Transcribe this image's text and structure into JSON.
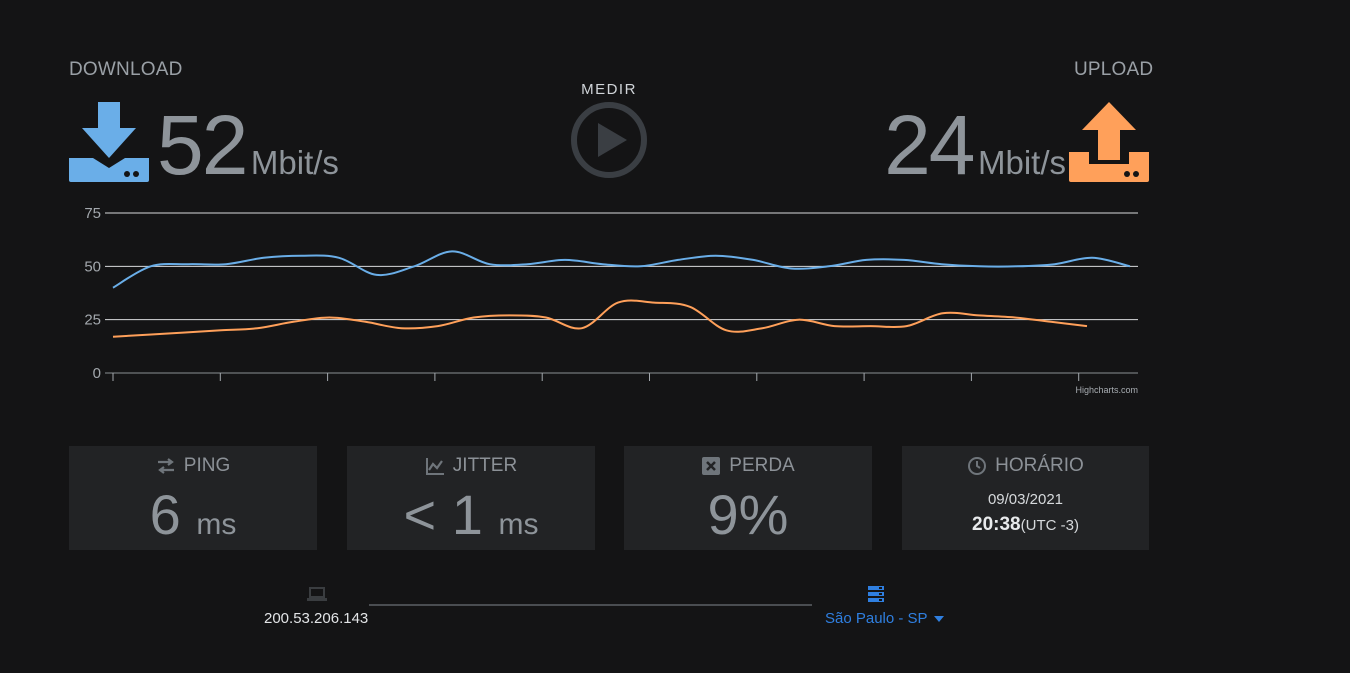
{
  "download": {
    "label": "DOWNLOAD",
    "value": "52",
    "unit": "Mbit/s",
    "color": "#6aaee8"
  },
  "upload": {
    "label": "UPLOAD",
    "value": "24",
    "unit": "Mbit/s",
    "color": "#ffa05a"
  },
  "measure": {
    "label": "MEDIR"
  },
  "chart_data": {
    "type": "line",
    "y_ticks": [
      "75",
      "50",
      "25",
      "0"
    ],
    "ylim": [
      0,
      75
    ],
    "credit": "Highcharts.com",
    "series": [
      {
        "color": "#6aaee8",
        "values": [
          40,
          50,
          51,
          51,
          54,
          55,
          54,
          46,
          50,
          57,
          51,
          51,
          53,
          51,
          50,
          53,
          55,
          53,
          49,
          50,
          53,
          53,
          51,
          50,
          50,
          51,
          54,
          50
        ]
      },
      {
        "color": "#ffa05a",
        "values": [
          17,
          18,
          19,
          20,
          21,
          24,
          26,
          24,
          21,
          22,
          26,
          27,
          26,
          21,
          33,
          33,
          31,
          20,
          21,
          25,
          22,
          22,
          22,
          28,
          27,
          26,
          24,
          22
        ]
      }
    ]
  },
  "ping": {
    "label": "PING",
    "value": "6",
    "unit": "ms"
  },
  "jitter": {
    "label": "JITTER",
    "prefix": "<",
    "value": "1",
    "unit": "ms"
  },
  "loss": {
    "label": "PERDA",
    "value": "9%"
  },
  "time": {
    "label": "HORÁRIO",
    "date": "09/03/2021",
    "clock": "20:38",
    "tz": "(UTC -3)"
  },
  "client": {
    "ip": "200.53.206.143"
  },
  "server": {
    "name": "São Paulo - SP",
    "accent": "#2f7fe0"
  }
}
